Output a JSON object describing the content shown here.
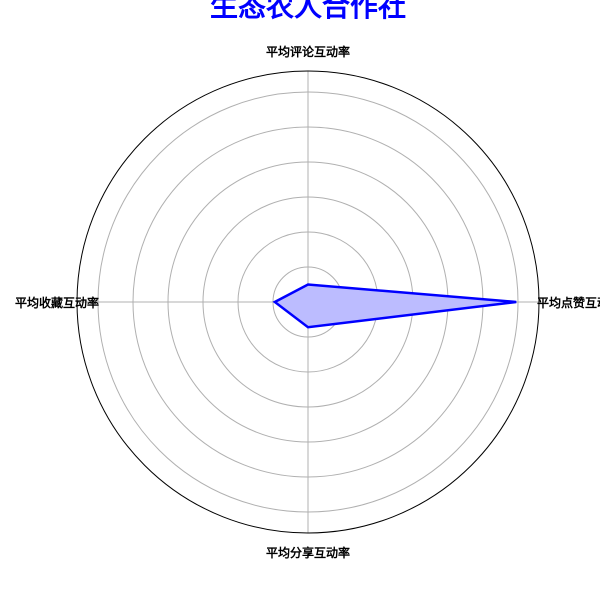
{
  "chart_data": {
    "type": "radar",
    "title": "生态农人合作社",
    "axes": [
      "平均点赞互动率",
      "平均评论互动率",
      "平均收藏互动率",
      "平均分享互动率"
    ],
    "series": [
      {
        "values": [
          0.0595,
          0.005,
          0.0095,
          0.0072
        ]
      }
    ],
    "rmax": 0.066,
    "ring_count": 6,
    "grid": true,
    "colors": {
      "title": "#0000ff",
      "line": "#0000ff",
      "fill": "#bcbcff",
      "grid": "#b0b0b0",
      "frame": "#000000"
    }
  }
}
